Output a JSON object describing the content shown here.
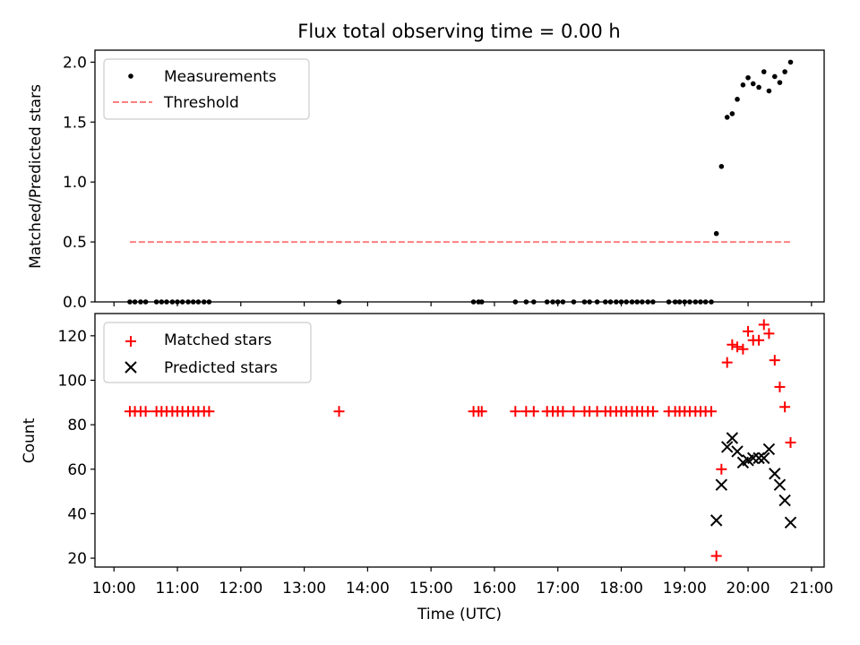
{
  "chart_data": [
    {
      "type": "scatter",
      "title": "Flux total observing time = 0.00 h",
      "xlabel": "",
      "ylabel": "Matched/Predicted stars",
      "xlim": [
        9.7,
        21.2
      ],
      "ylim": [
        0.0,
        2.1
      ],
      "yticks": [
        0.0,
        0.5,
        1.0,
        1.5,
        2.0
      ],
      "ytick_labels": [
        "0.0",
        "0.5",
        "1.0",
        "1.5",
        "2.0"
      ],
      "legend_position": "top-left",
      "legend": [
        "Measurements",
        "Threshold"
      ],
      "colors": {
        "measurements": "#000000",
        "threshold": "#ff7f7f"
      },
      "series": [
        {
          "name": "Measurements",
          "kind": "dots",
          "x": [
            10.25,
            10.33,
            10.42,
            10.5,
            10.67,
            10.75,
            10.83,
            10.92,
            11.0,
            11.08,
            11.17,
            11.25,
            11.33,
            11.42,
            11.5,
            13.55,
            15.67,
            15.75,
            15.8,
            16.33,
            16.5,
            16.62,
            16.83,
            16.92,
            17.0,
            17.08,
            17.25,
            17.42,
            17.5,
            17.62,
            17.75,
            17.83,
            17.92,
            18.0,
            18.08,
            18.17,
            18.25,
            18.33,
            18.42,
            18.5,
            18.75,
            18.85,
            18.92,
            19.0,
            19.08,
            19.17,
            19.25,
            19.33,
            19.42,
            19.5,
            19.58,
            19.67,
            19.75,
            19.83,
            19.92,
            20.0,
            20.08,
            20.17,
            20.25,
            20.33,
            20.42,
            20.5,
            20.58,
            20.67
          ],
          "y": [
            0,
            0,
            0,
            0,
            0,
            0,
            0,
            0,
            0,
            0,
            0,
            0,
            0,
            0,
            0,
            0,
            0,
            0,
            0,
            0,
            0,
            0,
            0,
            0,
            0,
            0,
            0,
            0,
            0,
            0,
            0,
            0,
            0,
            0,
            0,
            0,
            0,
            0,
            0,
            0,
            0,
            0,
            0,
            0,
            0,
            0,
            0,
            0,
            0,
            0.57,
            1.13,
            1.54,
            1.57,
            1.69,
            1.81,
            1.87,
            1.82,
            1.79,
            1.92,
            1.76,
            1.88,
            1.83,
            1.92,
            2.0
          ]
        },
        {
          "name": "Threshold",
          "kind": "dashed-line",
          "x": [
            10.25,
            20.67
          ],
          "y": [
            0.5,
            0.5
          ]
        }
      ]
    },
    {
      "type": "scatter",
      "title": "",
      "xlabel": "Time (UTC)",
      "ylabel": "Count",
      "xlim": [
        9.7,
        21.2
      ],
      "ylim": [
        16,
        130
      ],
      "yticks": [
        20,
        40,
        60,
        80,
        100,
        120
      ],
      "ytick_labels": [
        "20",
        "40",
        "60",
        "80",
        "100",
        "120"
      ],
      "xticks": [
        10,
        11,
        12,
        13,
        14,
        15,
        16,
        17,
        18,
        19,
        20,
        21
      ],
      "xtick_labels": [
        "10:00",
        "11:00",
        "12:00",
        "13:00",
        "14:00",
        "15:00",
        "16:00",
        "17:00",
        "18:00",
        "19:00",
        "20:00",
        "21:00"
      ],
      "legend_position": "top-left",
      "legend": [
        "Matched stars",
        "Predicted stars"
      ],
      "colors": {
        "matched": "#ff0000",
        "predicted": "#000000"
      },
      "series": [
        {
          "name": "Matched stars",
          "kind": "plus",
          "x": [
            10.25,
            10.33,
            10.42,
            10.5,
            10.67,
            10.75,
            10.83,
            10.92,
            11.0,
            11.08,
            11.17,
            11.25,
            11.33,
            11.42,
            11.5,
            13.55,
            15.67,
            15.75,
            15.8,
            16.33,
            16.5,
            16.62,
            16.83,
            16.92,
            17.0,
            17.08,
            17.25,
            17.42,
            17.5,
            17.62,
            17.75,
            17.83,
            17.92,
            18.0,
            18.08,
            18.17,
            18.25,
            18.33,
            18.42,
            18.5,
            18.75,
            18.85,
            18.92,
            19.0,
            19.08,
            19.17,
            19.25,
            19.33,
            19.42,
            19.5,
            19.58,
            19.67,
            19.75,
            19.83,
            19.92,
            20.0,
            20.08,
            20.17,
            20.25,
            20.33,
            20.42,
            20.5,
            20.58,
            20.67
          ],
          "y": [
            86,
            86,
            86,
            86,
            86,
            86,
            86,
            86,
            86,
            86,
            86,
            86,
            86,
            86,
            86,
            86,
            86,
            86,
            86,
            86,
            86,
            86,
            86,
            86,
            86,
            86,
            86,
            86,
            86,
            86,
            86,
            86,
            86,
            86,
            86,
            86,
            86,
            86,
            86,
            86,
            86,
            86,
            86,
            86,
            86,
            86,
            86,
            86,
            86,
            21,
            60,
            108,
            116,
            115,
            114,
            122,
            118,
            118,
            125,
            121,
            109,
            97,
            88,
            72
          ]
        },
        {
          "name": "Predicted stars",
          "kind": "x",
          "x": [
            19.5,
            19.58,
            19.67,
            19.75,
            19.83,
            19.92,
            20.0,
            20.08,
            20.17,
            20.25,
            20.33,
            20.42,
            20.5,
            20.58,
            20.67
          ],
          "y": [
            37,
            53,
            70,
            74,
            68,
            63,
            64,
            65,
            65,
            65,
            69,
            58,
            53,
            46,
            36
          ]
        }
      ]
    }
  ]
}
